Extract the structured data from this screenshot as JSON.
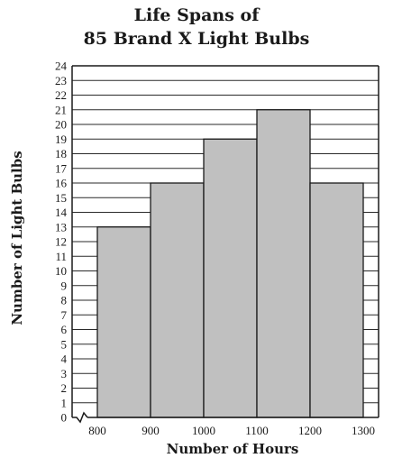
{
  "chart_data": {
    "type": "bar",
    "title_lines": [
      "Life Spans of",
      "85 Brand X Light Bulbs"
    ],
    "xlabel": "Number of Hours",
    "ylabel": "Number of Light Bulbs",
    "x_ticks": [
      "800",
      "900",
      "1000",
      "1100",
      "1200",
      "1300"
    ],
    "categories": [
      "800-900",
      "900-1000",
      "1000-1100",
      "1100-1200",
      "1200-1300"
    ],
    "values": [
      13,
      16,
      19,
      21,
      16
    ],
    "ylim": [
      0,
      24
    ],
    "y_tick_step": 1,
    "grid": true,
    "axis_break": true,
    "bar_color": "#c0c0c0",
    "edge_color": "#1a1a1a"
  }
}
